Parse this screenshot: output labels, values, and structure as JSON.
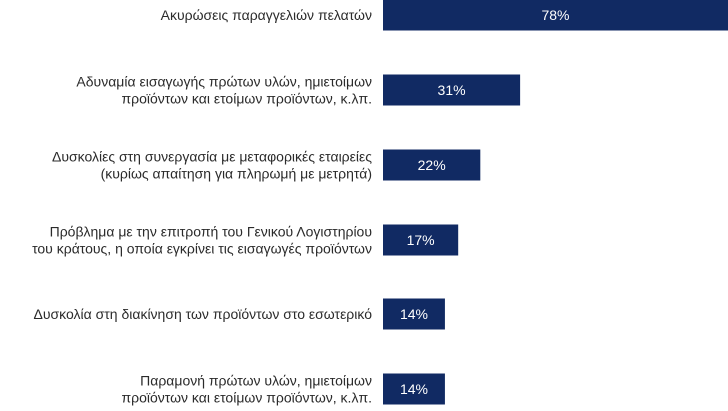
{
  "chart_data": {
    "type": "bar",
    "orientation": "horizontal",
    "categories": [
      [
        "Ακυρώσεις παραγγελιών πελατών"
      ],
      [
        "Αδυναμία εισαγωγής πρώτων υλών, ημιετοίμων",
        "προϊόντων και ετοίμων προϊόντων, κ.λπ."
      ],
      [
        "Δυσκολίες στη συνεργασία με μεταφορικές εταιρείες",
        "(κυρίως απαίτηση για πληρωμή με μετρητά)"
      ],
      [
        "Πρόβλημα με την επιτροπή του Γενικού Λογιστηρίου",
        "του κράτους, η οποία εγκρίνει τις εισαγωγές προϊόντων"
      ],
      [
        "Δυσκολία στη διακίνηση των προϊόντων στο εσωτερικό"
      ],
      [
        "Παραμονή πρώτων υλών, ημιετοίμων",
        "προϊόντων και ετοίμων προϊόντων, κ.λπ."
      ]
    ],
    "values": [
      78,
      31,
      22,
      17,
      14,
      14
    ],
    "value_labels": [
      "78%",
      "31%",
      "22%",
      "17%",
      "14%",
      "14%"
    ],
    "unit": "%",
    "xlim": [
      0,
      78
    ],
    "grid": false,
    "legend": "none",
    "bar_color": "#112a63",
    "label_color": "#2b2b2b",
    "value_label_color": "#ffffff"
  }
}
